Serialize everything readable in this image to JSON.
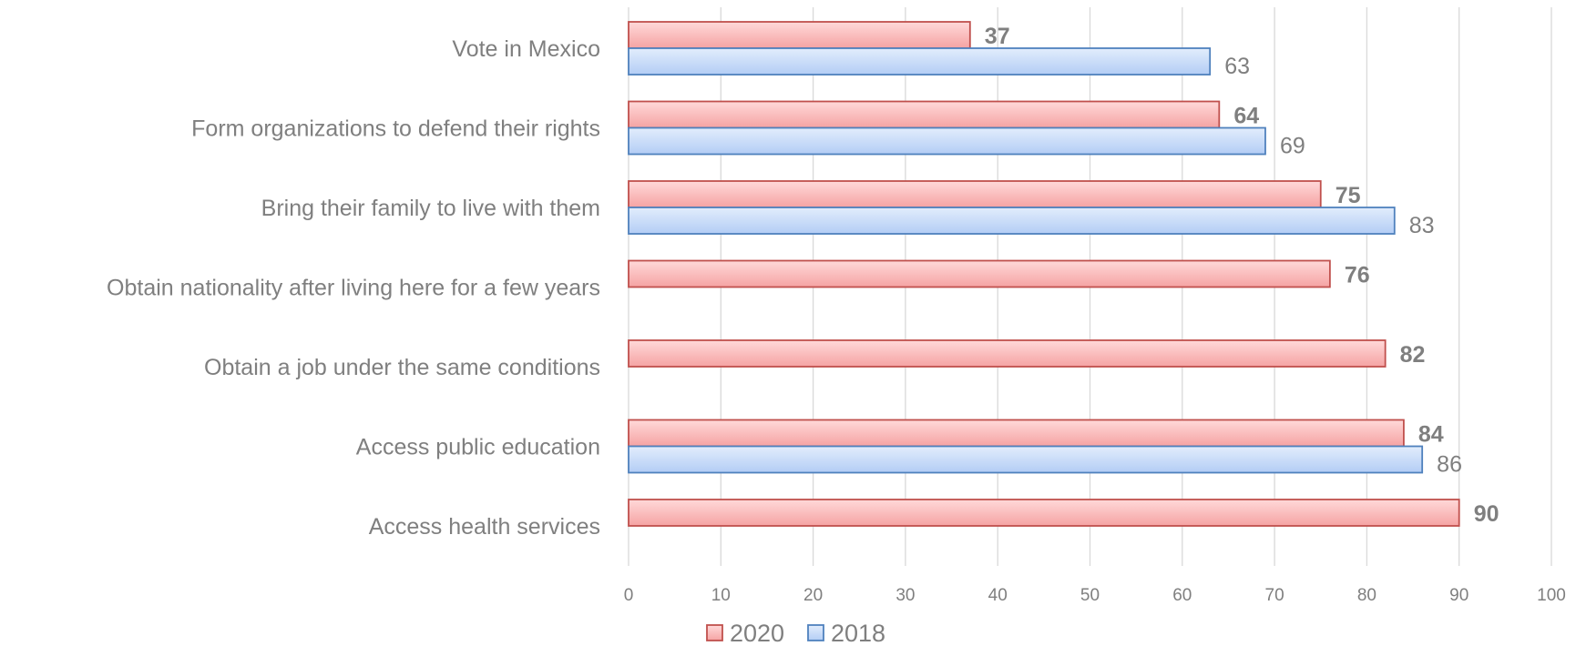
{
  "chart_data": {
    "type": "bar",
    "orientation": "horizontal",
    "categories": [
      "Vote in Mexico",
      "Form organizations to defend their rights",
      "Bring their family to live with them",
      "Obtain nationality after living here for a few years",
      "Obtain a job under the same conditions",
      "Access public education",
      "Access health services"
    ],
    "series": [
      {
        "name": "2020",
        "values": [
          37,
          64,
          75,
          76,
          82,
          84,
          90
        ],
        "color": "#f5a3a3",
        "border": "#c0504d"
      },
      {
        "name": "2018",
        "values": [
          63,
          69,
          83,
          null,
          null,
          86,
          null
        ],
        "color": "#bdd5f7",
        "border": "#4f81bd"
      }
    ],
    "xlim": [
      0,
      100
    ],
    "xticks": [
      "0",
      "10",
      "20",
      "30",
      "40",
      "50",
      "60",
      "70",
      "80",
      "90",
      "100"
    ],
    "grid": true,
    "legend_position": "bottom"
  }
}
